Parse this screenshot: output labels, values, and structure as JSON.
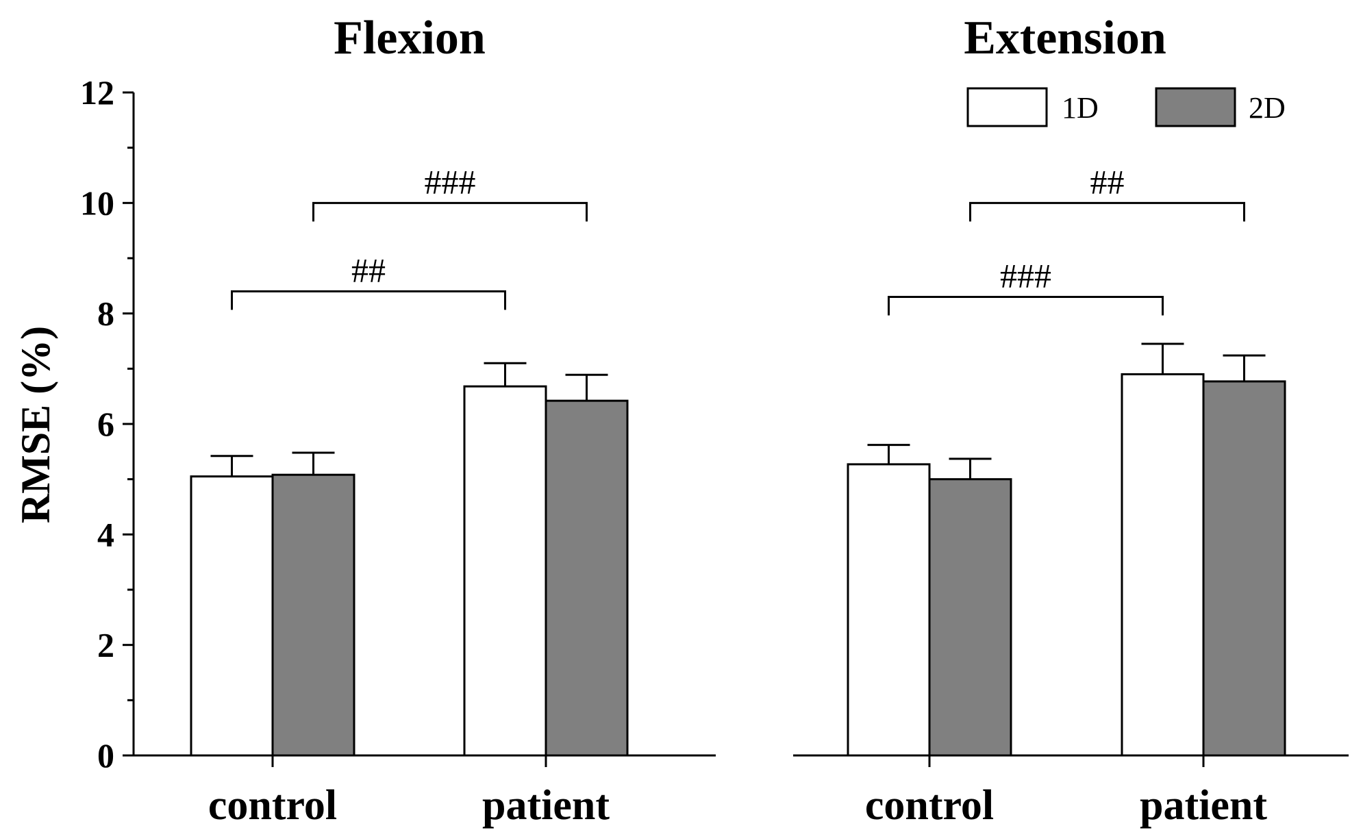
{
  "chart_data": {
    "type": "bar",
    "ylabel": "RMSE (%)",
    "ylim": [
      0,
      12
    ],
    "yticks": [
      0,
      2,
      4,
      6,
      8,
      10,
      12
    ],
    "legend": {
      "position": "top-right",
      "entries": [
        {
          "name": "1D",
          "color": "#ffffff"
        },
        {
          "name": "2D",
          "color": "#808080"
        }
      ]
    },
    "panels": [
      {
        "title": "Flexion",
        "categories": [
          "control",
          "patient"
        ],
        "series": [
          {
            "name": "1D",
            "color": "#ffffff",
            "values": [
              5.05,
              6.68
            ],
            "errors": [
              0.37,
              0.42
            ]
          },
          {
            "name": "2D",
            "color": "#808080",
            "values": [
              5.08,
              6.42
            ],
            "errors": [
              0.4,
              0.47
            ]
          }
        ],
        "significance": [
          {
            "label": "##",
            "from": [
              0,
              0
            ],
            "to": [
              1,
              0
            ],
            "level": 8.4
          },
          {
            "label": "###",
            "from": [
              0,
              1
            ],
            "to": [
              1,
              1
            ],
            "level": 10.0
          }
        ]
      },
      {
        "title": "Extension",
        "categories": [
          "control",
          "patient"
        ],
        "series": [
          {
            "name": "1D",
            "color": "#ffffff",
            "values": [
              5.27,
              6.9
            ],
            "errors": [
              0.35,
              0.55
            ]
          },
          {
            "name": "2D",
            "color": "#808080",
            "values": [
              5.0,
              6.77
            ],
            "errors": [
              0.37,
              0.47
            ]
          }
        ],
        "significance": [
          {
            "label": "###",
            "from": [
              0,
              0
            ],
            "to": [
              1,
              0
            ],
            "level": 8.3
          },
          {
            "label": "##",
            "from": [
              0,
              1
            ],
            "to": [
              1,
              1
            ],
            "level": 10.0
          }
        ]
      }
    ]
  }
}
